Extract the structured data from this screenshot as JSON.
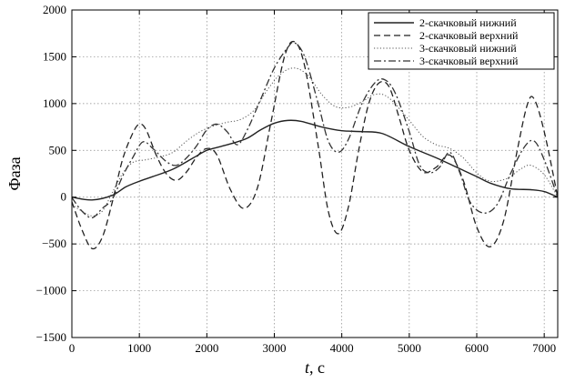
{
  "chart_data": {
    "type": "line",
    "xlabel_var": "t",
    "xlabel_unit": ", с",
    "ylabel": "Фаза",
    "xlim": [
      0,
      7200
    ],
    "ylim": [
      -1500,
      2000
    ],
    "x_ticks": [
      0,
      1000,
      2000,
      3000,
      4000,
      5000,
      6000,
      7000
    ],
    "y_ticks": [
      -1500,
      -1000,
      -500,
      0,
      500,
      1000,
      1500,
      2000
    ],
    "grid": true,
    "legend_position": "top-right",
    "series": [
      {
        "name": "2-скачковый нижний",
        "dash": "solid",
        "points": [
          [
            0,
            0
          ],
          [
            300,
            -30
          ],
          [
            600,
            20
          ],
          [
            800,
            110
          ],
          [
            1000,
            170
          ],
          [
            1200,
            220
          ],
          [
            1500,
            300
          ],
          [
            1800,
            420
          ],
          [
            2000,
            500
          ],
          [
            2200,
            540
          ],
          [
            2400,
            580
          ],
          [
            2600,
            630
          ],
          [
            2800,
            720
          ],
          [
            3000,
            790
          ],
          [
            3200,
            820
          ],
          [
            3400,
            810
          ],
          [
            3700,
            750
          ],
          [
            4000,
            710
          ],
          [
            4300,
            700
          ],
          [
            4600,
            680
          ],
          [
            5000,
            540
          ],
          [
            5400,
            420
          ],
          [
            5700,
            320
          ],
          [
            6000,
            220
          ],
          [
            6200,
            150
          ],
          [
            6500,
            90
          ],
          [
            6800,
            80
          ],
          [
            7000,
            60
          ],
          [
            7200,
            0
          ]
        ]
      },
      {
        "name": "2-скачковый верхний",
        "dash": "dashed",
        "points": [
          [
            0,
            -50
          ],
          [
            150,
            -350
          ],
          [
            300,
            -550
          ],
          [
            450,
            -430
          ],
          [
            600,
            -50
          ],
          [
            750,
            400
          ],
          [
            900,
            680
          ],
          [
            1000,
            780
          ],
          [
            1100,
            720
          ],
          [
            1250,
            450
          ],
          [
            1400,
            250
          ],
          [
            1550,
            180
          ],
          [
            1700,
            270
          ],
          [
            1850,
            430
          ],
          [
            2000,
            520
          ],
          [
            2150,
            450
          ],
          [
            2350,
            80
          ],
          [
            2550,
            -120
          ],
          [
            2750,
            100
          ],
          [
            2950,
            800
          ],
          [
            3150,
            1500
          ],
          [
            3300,
            1660
          ],
          [
            3450,
            1400
          ],
          [
            3650,
            550
          ],
          [
            3800,
            -150
          ],
          [
            3950,
            -390
          ],
          [
            4100,
            -100
          ],
          [
            4250,
            500
          ],
          [
            4400,
            1000
          ],
          [
            4550,
            1220
          ],
          [
            4700,
            1180
          ],
          [
            4850,
            850
          ],
          [
            5000,
            500
          ],
          [
            5200,
            270
          ],
          [
            5400,
            320
          ],
          [
            5600,
            450
          ],
          [
            5800,
            180
          ],
          [
            6000,
            -320
          ],
          [
            6200,
            -530
          ],
          [
            6400,
            -250
          ],
          [
            6600,
            500
          ],
          [
            6750,
            990
          ],
          [
            6850,
            1050
          ],
          [
            7000,
            700
          ],
          [
            7200,
            0
          ]
        ]
      },
      {
        "name": "3-скачковый нижний",
        "dash": "dotted",
        "points": [
          [
            0,
            -80
          ],
          [
            150,
            -150
          ],
          [
            300,
            -200
          ],
          [
            450,
            -150
          ],
          [
            600,
            50
          ],
          [
            750,
            250
          ],
          [
            900,
            370
          ],
          [
            1100,
            400
          ],
          [
            1300,
            430
          ],
          [
            1500,
            480
          ],
          [
            1700,
            600
          ],
          [
            1900,
            700
          ],
          [
            2100,
            760
          ],
          [
            2300,
            800
          ],
          [
            2500,
            830
          ],
          [
            2700,
            930
          ],
          [
            2900,
            1150
          ],
          [
            3100,
            1320
          ],
          [
            3300,
            1380
          ],
          [
            3500,
            1300
          ],
          [
            3700,
            1100
          ],
          [
            3900,
            970
          ],
          [
            4100,
            960
          ],
          [
            4300,
            1020
          ],
          [
            4500,
            1100
          ],
          [
            4700,
            1060
          ],
          [
            5000,
            820
          ],
          [
            5200,
            650
          ],
          [
            5400,
            560
          ],
          [
            5600,
            520
          ],
          [
            5800,
            420
          ],
          [
            6000,
            260
          ],
          [
            6200,
            170
          ],
          [
            6450,
            200
          ],
          [
            6650,
            300
          ],
          [
            6800,
            340
          ],
          [
            7000,
            240
          ],
          [
            7200,
            0
          ]
        ]
      },
      {
        "name": "3-скачковый верхний",
        "dash": "dash-dot",
        "points": [
          [
            0,
            -5
          ],
          [
            150,
            -150
          ],
          [
            300,
            -220
          ],
          [
            450,
            -120
          ],
          [
            600,
            -20
          ],
          [
            750,
            220
          ],
          [
            900,
            420
          ],
          [
            1050,
            590
          ],
          [
            1200,
            520
          ],
          [
            1400,
            380
          ],
          [
            1550,
            340
          ],
          [
            1700,
            420
          ],
          [
            1850,
            550
          ],
          [
            2000,
            720
          ],
          [
            2150,
            780
          ],
          [
            2300,
            700
          ],
          [
            2450,
            560
          ],
          [
            2600,
            720
          ],
          [
            2800,
            1050
          ],
          [
            3000,
            1380
          ],
          [
            3200,
            1600
          ],
          [
            3300,
            1650
          ],
          [
            3450,
            1500
          ],
          [
            3650,
            1000
          ],
          [
            3800,
            600
          ],
          [
            3950,
            480
          ],
          [
            4100,
            620
          ],
          [
            4300,
            1000
          ],
          [
            4500,
            1230
          ],
          [
            4650,
            1250
          ],
          [
            4800,
            1100
          ],
          [
            5000,
            700
          ],
          [
            5150,
            350
          ],
          [
            5300,
            260
          ],
          [
            5450,
            320
          ],
          [
            5600,
            480
          ],
          [
            5750,
            260
          ],
          [
            5900,
            -50
          ],
          [
            6100,
            -170
          ],
          [
            6300,
            -80
          ],
          [
            6500,
            250
          ],
          [
            6700,
            530
          ],
          [
            6850,
            600
          ],
          [
            7000,
            400
          ],
          [
            7200,
            0
          ]
        ]
      }
    ]
  }
}
